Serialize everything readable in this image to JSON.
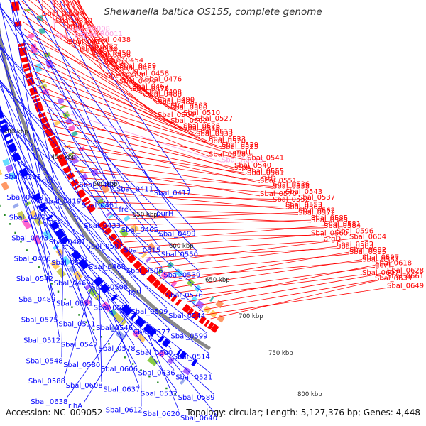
{
  "title": "Shewanella baltica OS155, complete genome",
  "footer": {
    "accession": "Accession: NC_009052",
    "summary": "Topology: circular; Length: 5,127,376 bp; Genes: 4,448"
  },
  "colors": {
    "forward": "#ff0000",
    "reverse": "#0000ff",
    "rna": "#ff9ee0",
    "backbone": "#888888",
    "tick": "#228822"
  },
  "ticks": [
    "400 kbp",
    "450 kbp",
    "500 kbp",
    "550 kbp",
    "600 kbp",
    "650 kbp",
    "700 kbp",
    "750 kbp",
    "800 kbp"
  ],
  "forward_labels": [
    "Sbal_0324",
    "Sbal_0390",
    "Sbal_R0008",
    "Sbal_R0012",
    "murC",
    "Sbal_R0011",
    "Sbal_0416",
    "Sbal_0430",
    "Sbal_0438",
    "Sbal_0437",
    "Sbal_0436",
    "urvD",
    "Sbal_0450",
    "Sbal_0454",
    "Sbal_0461",
    "Sbal_0463",
    "Sbal_0459",
    "Sbal_0458",
    "Sbal_0479",
    "Sbal_0478",
    "Sbal_0476",
    "Sbal_0467",
    "Sbal_0488",
    "Sbal_0485",
    "Sbal_0498",
    "Sbal_0490",
    "Sbal_0500",
    "Sbal_0504",
    "Sbal_0503",
    "Sbal_0510",
    "Sbal_0502",
    "Sbal_0516",
    "Sbal_0527",
    "Sbal_0526",
    "Sbal_0533",
    "Sbal_0520",
    "Sbal_0513",
    "Sbal_0523",
    "Sbal_0525",
    "Sbal_0518",
    "Sbal_0529",
    "mutL",
    "Sbal_R0015",
    "sspA",
    "Sbal_0541",
    "Sbal_0540",
    "Sbal_0561",
    "Sbal_0551",
    "Sbal_0555",
    "astD",
    "Sbal_0538",
    "Sbal_0570",
    "Sbal_0536",
    "Sbal_0543",
    "Sbal_0552",
    "Sbal_0563",
    "Sbal_0537",
    "Sbal_0553",
    "Sbal_0572",
    "Sbal_0545",
    "Sbal_0562",
    "Sbal_0585",
    "Sbal_0584",
    "Sbal_0560",
    "Sbal_0581",
    "Sbal_0596",
    "argD",
    "Sbal_0583",
    "Sbal_0604",
    "Sbal_0582",
    "Sbal_0595",
    "Sbal_0587",
    "Sbal_0602",
    "Sbal_0597",
    "gcvT",
    "Sbal_0607",
    "Sbal_0618",
    "Sbal_0628",
    "Sbal_0639",
    "Sbal_0649",
    "Sbal_0661"
  ],
  "reverse_labels": [
    "Sbal_0392",
    "dut",
    "Sbal_0408",
    "Sbal_0411",
    "Sbal_0417",
    "Sbal_0449",
    "Sbal_0419",
    "Sbal_0451",
    "fre",
    "purH",
    "Sbal_0453",
    "mscL",
    "Sbal_0433",
    "Sbal_0465",
    "Sbal_0499",
    "Sbal_0443",
    "Sbal_0481",
    "Sbal_0507",
    "Sbal_0515",
    "Sbal_0550",
    "Sbal_0456",
    "Sbal_0501",
    "Sbal_0468",
    "Sbal_0506",
    "Sbal_0539",
    "Sbal_0542",
    "Sbal_0469",
    "Sbal_0508",
    "psd",
    "Sbal_0576",
    "Sbal_0489",
    "Sbal_0531",
    "Sbal_0591",
    "Sbal_0509",
    "Sbal_0544",
    "Sbal_0575",
    "Sbal_0511",
    "Sbal_0546",
    "Sbal_0577",
    "Sbal_0599",
    "Sbal_0512",
    "Sbal_0547",
    "Sbal_0578",
    "Sbal_0600",
    "Sbal_0514",
    "Sbal_0548",
    "Sbal_0580",
    "Sbal_0606",
    "Sbal_0636",
    "Sbal_0521",
    "Sbal_0588",
    "Sbal_0608",
    "Sbal_0637",
    "Sbal_0532",
    "Sbal_0589",
    "Sbal_0638",
    "rihA",
    "Sbal_0612",
    "Sbal_0620",
    "Sbal_0640"
  ]
}
